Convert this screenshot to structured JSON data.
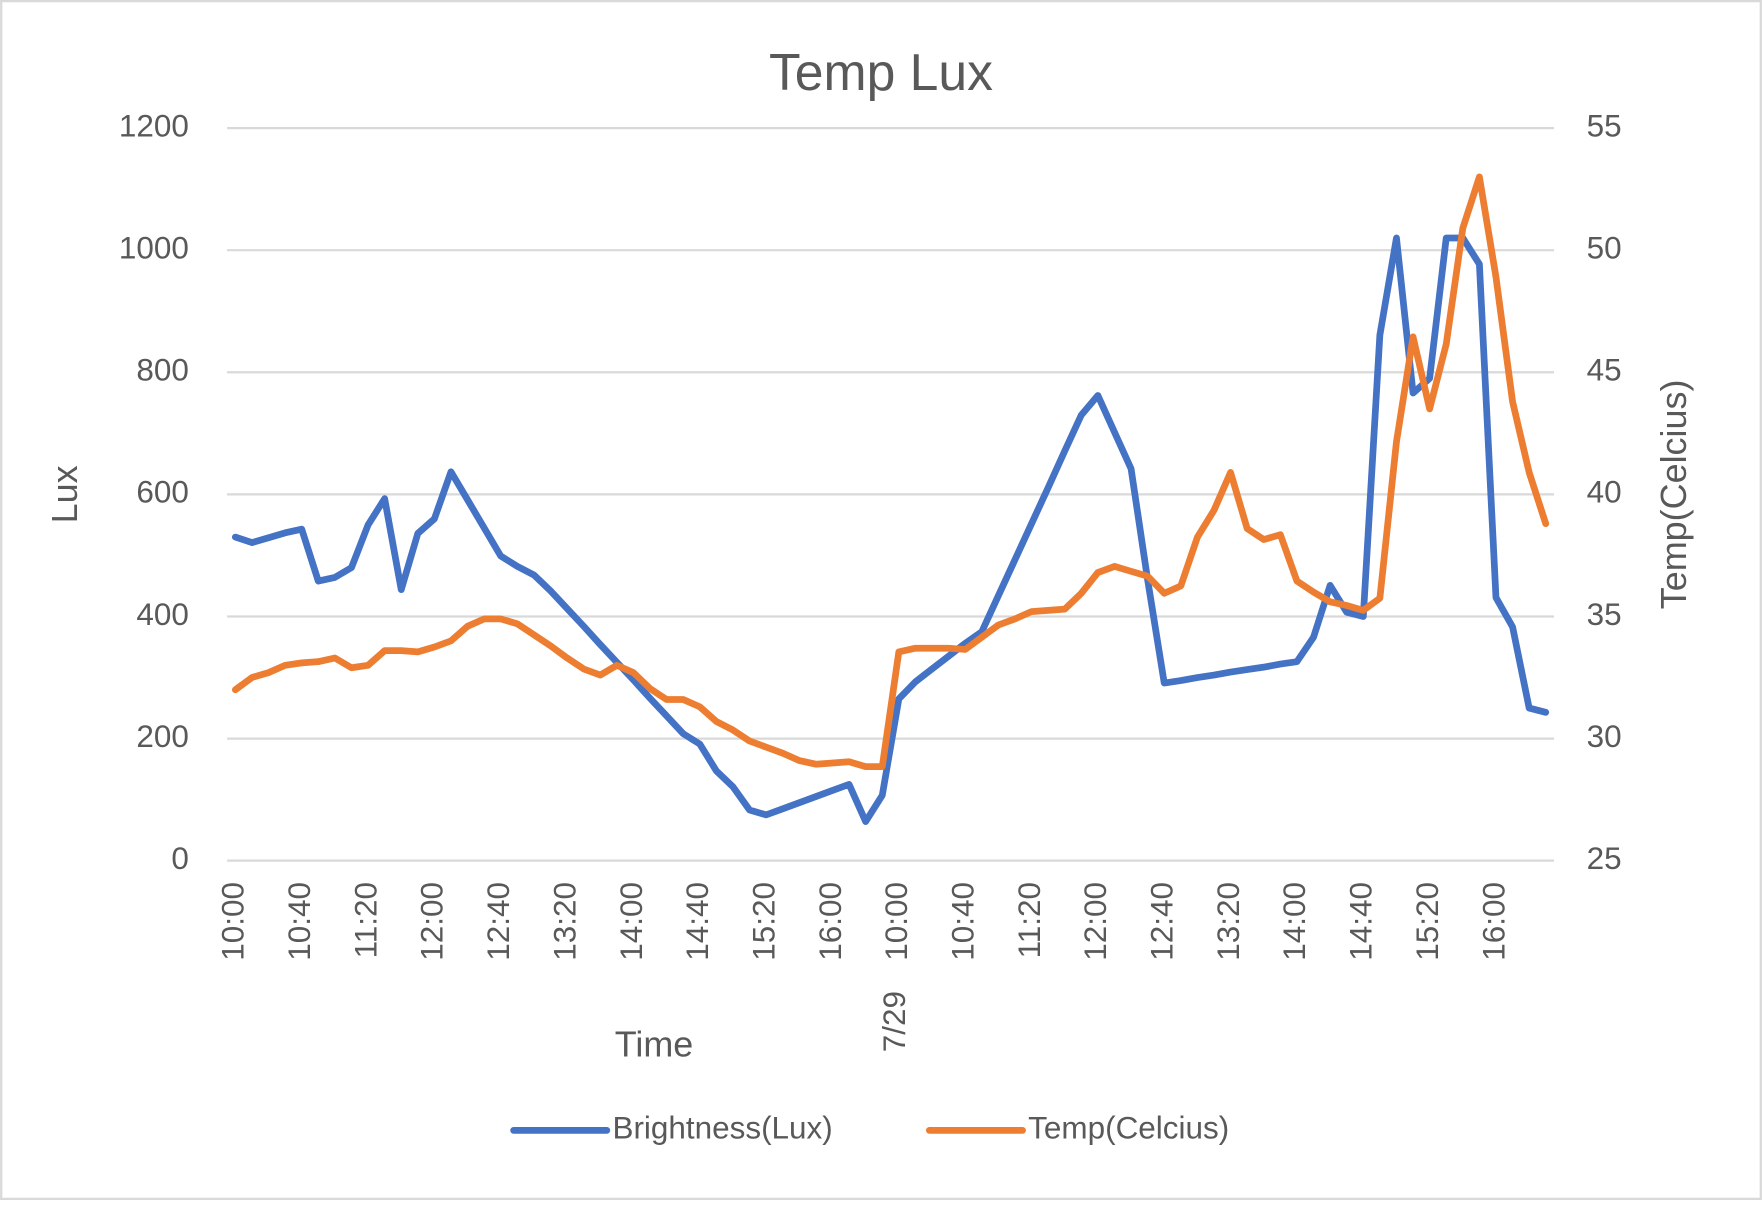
{
  "chart_data": {
    "type": "line",
    "title": "Temp Lux",
    "x_label": "Time",
    "y_label": "Lux",
    "y2_label": "Temp(Celcius)",
    "date_label": "7/29",
    "date_label_index": 40,
    "categories": [
      "10:00",
      null,
      null,
      null,
      "10:40",
      null,
      null,
      null,
      "11:20",
      null,
      null,
      null,
      "12:00",
      null,
      null,
      null,
      "12:40",
      null,
      null,
      null,
      "13:20",
      null,
      null,
      null,
      "14:00",
      null,
      null,
      null,
      "14:40",
      null,
      null,
      null,
      "15:20",
      null,
      null,
      null,
      "16:00",
      null,
      null,
      null,
      "10:00",
      null,
      null,
      null,
      "10:40",
      null,
      null,
      null,
      "11:20",
      null,
      null,
      null,
      "12:00",
      null,
      null,
      null,
      "12:40",
      null,
      null,
      null,
      "13:20",
      null,
      null,
      null,
      "14:00",
      null,
      null,
      null,
      "14:40",
      null,
      null,
      null,
      "15:20",
      null,
      null,
      null,
      "16:00",
      null,
      null,
      null
    ],
    "series": [
      {
        "name": "Brightness(Lux)",
        "color": "#4472c4",
        "axis": "y",
        "values": [
          530,
          521,
          529,
          537,
          543,
          458,
          464,
          480,
          550,
          593,
          444,
          536,
          560,
          637,
          591,
          545,
          499,
          482,
          468,
          442,
          413,
          384,
          354,
          325,
          296,
          266,
          237,
          208,
          191,
          147,
          121,
          83,
          75,
          85,
          95,
          105,
          115,
          125,
          64,
          107,
          265,
          293,
          314,
          335,
          356,
          375,
          434,
          493,
          552,
          611,
          671,
          730,
          762,
          702,
          642,
          460,
          291,
          295,
          300,
          304,
          309,
          313,
          317,
          322,
          326,
          366,
          451,
          407,
          400,
          861,
          1020,
          766,
          790,
          1020,
          1020,
          977,
          431,
          383,
          250,
          243
        ]
      },
      {
        "name": "Temp(Celcius)",
        "color": "#ed7d31",
        "axis": "y2",
        "values": [
          32.0,
          32.5,
          32.7,
          33.0,
          33.1,
          33.15,
          33.3,
          32.9,
          33.0,
          33.6,
          33.6,
          33.55,
          33.75,
          34.0,
          34.6,
          34.9,
          34.9,
          34.7,
          34.25,
          33.8,
          33.3,
          32.85,
          32.6,
          33.0,
          32.7,
          32.05,
          31.6,
          31.6,
          31.3,
          30.7,
          30.35,
          29.9,
          29.65,
          29.4,
          29.1,
          28.95,
          29.0,
          29.05,
          28.85,
          28.85,
          33.55,
          33.7,
          33.7,
          33.7,
          33.65,
          34.15,
          34.65,
          34.9,
          35.2,
          35.25,
          35.3,
          35.95,
          36.8,
          37.05,
          36.85,
          36.65,
          35.95,
          36.25,
          38.25,
          39.35,
          40.9,
          38.6,
          38.15,
          38.35,
          36.45,
          36.0,
          35.6,
          35.45,
          35.25,
          35.75,
          42.15,
          46.45,
          43.5,
          46.15,
          50.9,
          53.0,
          48.9,
          43.8,
          40.9,
          38.8
        ]
      }
    ],
    "ylim": [
      0,
      1200
    ],
    "yticks": [
      0,
      200,
      400,
      600,
      800,
      1000,
      1200
    ],
    "y2lim": [
      25,
      55
    ],
    "y2ticks": [
      25,
      30,
      35,
      40,
      45,
      50,
      55
    ],
    "grid": true,
    "legend": "bottom"
  }
}
